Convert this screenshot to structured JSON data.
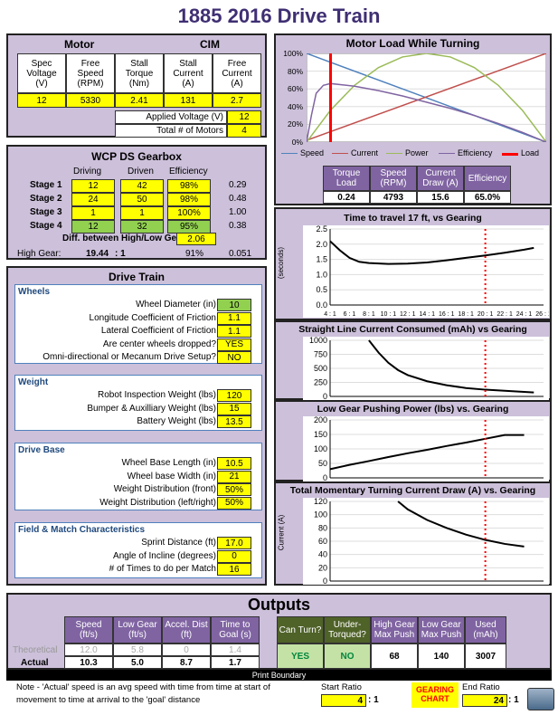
{
  "page_title": "1885 2016 Drive Train",
  "motor": {
    "title": "Motor",
    "motor_name": "CIM",
    "headers": [
      "Spec\nVoltage\n(V)",
      "Free\nSpeed\n(RPM)",
      "Stall\nTorque\n(Nm)",
      "Stall\nCurrent\n(A)",
      "Free\nCurrent\n(A)"
    ],
    "values": [
      "12",
      "5330",
      "2.41",
      "131",
      "2.7"
    ],
    "applied_voltage_label": "Applied Voltage (V)",
    "applied_voltage": "12",
    "num_motors_label": "Total # of Motors",
    "num_motors": "4"
  },
  "gearbox": {
    "title": "WCP DS Gearbox",
    "headers": [
      "Driving",
      "Driven",
      "Efficiency"
    ],
    "stages": [
      {
        "label": "Stage 1",
        "driving": "12",
        "driven": "42",
        "eff": "98%",
        "ratio": "0.29"
      },
      {
        "label": "Stage 2",
        "driving": "24",
        "driven": "50",
        "eff": "98%",
        "ratio": "0.48"
      },
      {
        "label": "Stage 3",
        "driving": "1",
        "driven": "1",
        "eff": "100%",
        "ratio": "1.00"
      },
      {
        "label": "Stage 4",
        "driving": "12",
        "driven": "32",
        "eff": "95%",
        "ratio": "0.38"
      }
    ],
    "diff_label": "Diff. between High/Low Gear",
    "diff": "2.06",
    "high_gear_label": "High Gear:",
    "high_gear_ratio": "19.44",
    ":1": ": 1",
    "high_gear_eff": "91%",
    "high_gear_val": "0.051"
  },
  "drivetrain": {
    "title": "Drive Train",
    "wheels": {
      "title": "Wheels",
      "rows": [
        {
          "label": "Wheel Diameter (in)",
          "value": "10",
          "color": "#92d050"
        },
        {
          "label": "Longitude Coefficient of Friction",
          "value": "1.1",
          "color": "#ffff00"
        },
        {
          "label": "Lateral Coefficient of Friction",
          "value": "1.1",
          "color": "#ffff00"
        },
        {
          "label": "Are center wheels dropped?",
          "value": "YES",
          "color": "#ffff00"
        },
        {
          "label": "Omni-directional or Mecanum Drive Setup?",
          "value": "NO",
          "color": "#ffff00"
        }
      ]
    },
    "weight": {
      "title": "Weight",
      "rows": [
        {
          "label": "Robot Inspection Weight (lbs)",
          "value": "120"
        },
        {
          "label": "Bumper & Auxilliary Weight (lbs)",
          "value": "15"
        },
        {
          "label": "Battery Weight (lbs)",
          "value": "13.5"
        }
      ]
    },
    "drivebase": {
      "title": "Drive Base",
      "rows": [
        {
          "label": "Wheel Base Length (in)",
          "value": "10.5"
        },
        {
          "label": "Wheel base Width (in)",
          "value": "21"
        },
        {
          "label": "Weight Distribution (front)",
          "value": "50%"
        },
        {
          "label": "Weight Distribution (left/right)",
          "value": "50%"
        }
      ]
    },
    "field": {
      "title": "Field & Match Characteristics",
      "rows": [
        {
          "label": "Sprint Distance (ft)",
          "value": "17.0"
        },
        {
          "label": "Angle of Incline (degrees)",
          "value": "0"
        },
        {
          "label": "# of Times to do per Match",
          "value": "16"
        }
      ]
    }
  },
  "motorload": {
    "title": "Motor Load While Turning",
    "legend": [
      "Speed",
      "Current",
      "Power",
      "Efficiency",
      "Load"
    ],
    "table_headers": [
      "Torque\nLoad",
      "Speed\n(RPM)",
      "Current\nDraw (A)",
      "Efficiency"
    ],
    "table_values": [
      "0.24",
      "4793",
      "15.6",
      "65.0%"
    ]
  },
  "chart_data": [
    {
      "type": "line",
      "title": "Motor Load While Turning",
      "ylabels": [
        "100%",
        "80%",
        "60%",
        "40%",
        "20%",
        "0%"
      ],
      "ylim": [
        0,
        100
      ],
      "series": [
        {
          "name": "Speed",
          "color": "#4f81bd",
          "values": [
            [
              0,
              100
            ],
            [
              100,
              0
            ]
          ]
        },
        {
          "name": "Current",
          "color": "#c0504d",
          "values": [
            [
              0,
              2
            ],
            [
              100,
              100
            ]
          ]
        },
        {
          "name": "Power",
          "color": "#9bbb59",
          "values": [
            [
              0,
              0
            ],
            [
              10,
              36
            ],
            [
              20,
              64
            ],
            [
              30,
              84
            ],
            [
              40,
              96
            ],
            [
              50,
              100
            ],
            [
              60,
              96
            ],
            [
              70,
              84
            ],
            [
              80,
              64
            ],
            [
              90,
              36
            ],
            [
              100,
              0
            ]
          ]
        },
        {
          "name": "Efficiency",
          "color": "#8064a2",
          "values": [
            [
              0,
              0
            ],
            [
              2,
              30
            ],
            [
              4,
              55
            ],
            [
              7,
              64
            ],
            [
              10,
              66
            ],
            [
              20,
              63
            ],
            [
              30,
              58
            ],
            [
              40,
              52
            ],
            [
              50,
              45
            ],
            [
              60,
              38
            ],
            [
              70,
              30
            ],
            [
              80,
              21
            ],
            [
              90,
              11
            ],
            [
              100,
              0
            ]
          ]
        },
        {
          "name": "Load",
          "color": "#ff0000",
          "values": [
            [
              10,
              0
            ],
            [
              10,
              100
            ]
          ]
        }
      ]
    },
    {
      "type": "line",
      "title": "Time to travel 17 ft,  vs Gearing",
      "ylabel": "(seconds)",
      "ylim": [
        0,
        2.5
      ],
      "yticks": [
        "2.5",
        "2.0",
        "1.5",
        "1.0",
        "0.5",
        "0.0"
      ],
      "xticks": [
        "4 : 1",
        "6 : 1",
        "8 : 1",
        "10 : 1",
        "12 : 1",
        "14 : 1",
        "16 : 1",
        "18 : 1",
        "20 : 1",
        "22 : 1",
        "24 : 1",
        "26 : 1"
      ],
      "x": [
        4,
        5,
        6,
        7,
        8,
        10,
        12,
        14,
        16,
        18,
        20,
        22,
        24,
        25
      ],
      "values": [
        2.1,
        1.8,
        1.55,
        1.42,
        1.38,
        1.35,
        1.36,
        1.4,
        1.47,
        1.55,
        1.63,
        1.72,
        1.82,
        1.88
      ],
      "marker": 20
    },
    {
      "type": "line",
      "title": "Straight Line Current Consumed (mAh) vs Gearing",
      "ylim": [
        0,
        1000
      ],
      "yticks": [
        "1000",
        "750",
        "500",
        "250",
        "0"
      ],
      "x": [
        8,
        9,
        10,
        11,
        12,
        14,
        16,
        18,
        20,
        22,
        24,
        25
      ],
      "values": [
        1000,
        780,
        600,
        470,
        380,
        270,
        200,
        150,
        120,
        100,
        80,
        70
      ],
      "marker": 20
    },
    {
      "type": "line",
      "title": "Low Gear Pushing Power (lbs) vs. Gearing",
      "ylim": [
        0,
        200
      ],
      "yticks": [
        "200",
        "150",
        "100",
        "50",
        "0"
      ],
      "x": [
        4,
        6,
        8,
        10,
        12,
        14,
        16,
        18,
        20,
        22,
        24
      ],
      "values": [
        30,
        45,
        58,
        72,
        85,
        97,
        110,
        122,
        135,
        148,
        148
      ],
      "marker": 20
    },
    {
      "type": "line",
      "title": "Total Momentary Turning Current Draw (A) vs. Gearing",
      "ylabel": "Current (A)",
      "ylim": [
        0,
        120
      ],
      "yticks": [
        "120",
        "100",
        "80",
        "60",
        "40",
        "20",
        "0"
      ],
      "x": [
        11,
        12,
        14,
        16,
        18,
        20,
        22,
        24
      ],
      "values": [
        120,
        108,
        92,
        80,
        70,
        62,
        56,
        52
      ],
      "marker": 20
    }
  ],
  "outputs": {
    "title": "Outputs",
    "headers": [
      "Speed\n(ft/s)",
      "Low Gear\n(ft/s)",
      "Accel. Dist\n(ft)",
      "Time to\nGoal (s)"
    ],
    "theoretical_label": "Theoretical",
    "theoretical": [
      "12.0",
      "5.8",
      "0",
      "1.4"
    ],
    "actual_label": "Actual",
    "actual": [
      "10.3",
      "5.0",
      "8.7",
      "1.7"
    ],
    "headers2": [
      "Can Turn?",
      "Under-\nTorqued?",
      "High Gear\nMax Push",
      "Low Gear\nMax Push",
      "Used\n(mAh)"
    ],
    "values2": [
      "YES",
      "NO",
      "68",
      "140",
      "3007"
    ]
  },
  "footer": {
    "print_boundary": "Print Boundary",
    "note": "Note - 'Actual' speed is an avg speed with time from time at start of movement to time at arrival to the 'goal' distance",
    "start_ratio_label": "Start Ratio",
    "start_ratio": "4",
    ":1": ": 1",
    "gearing_chart": "GEARING CHART",
    "end_ratio_label": "End Ratio",
    "end_ratio": "24"
  }
}
